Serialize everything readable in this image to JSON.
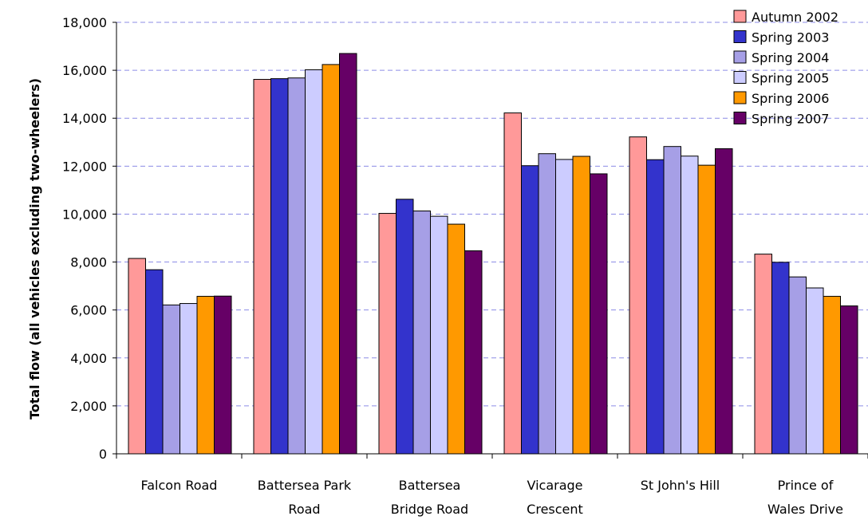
{
  "chart_data": {
    "type": "bar",
    "title": "",
    "xlabel": "",
    "ylabel": "Total flow (all vehicles excluding two-wheelers)",
    "ylim": [
      0,
      18000
    ],
    "yticks": [
      0,
      2000,
      4000,
      6000,
      8000,
      10000,
      12000,
      14000,
      16000,
      18000
    ],
    "ytick_labels": [
      "0",
      "2,000",
      "4,000",
      "6,000",
      "8,000",
      "10,000",
      "12,000",
      "14,000",
      "16,000",
      "18,000"
    ],
    "grid": "horizontal dashed",
    "legend_position": "top-right",
    "categories": [
      [
        "Falcon Road"
      ],
      [
        "Battersea Park",
        "Road"
      ],
      [
        "Battersea",
        "Bridge Road"
      ],
      [
        "Vicarage",
        "Crescent"
      ],
      [
        "St John's Hill"
      ],
      [
        "Prince of",
        "Wales Drive"
      ]
    ],
    "series": [
      {
        "name": "Autumn 2002",
        "color": "#ff9999",
        "values": [
          8150,
          15620,
          10030,
          14220,
          13220,
          8330
        ]
      },
      {
        "name": "Spring 2003",
        "color": "#3333cc",
        "values": [
          7680,
          15650,
          10620,
          12020,
          12270,
          7990
        ]
      },
      {
        "name": "Spring 2004",
        "color": "#a69fe6",
        "values": [
          6210,
          15680,
          10130,
          12520,
          12820,
          7380
        ]
      },
      {
        "name": "Spring 2005",
        "color": "#ccccff",
        "values": [
          6270,
          16020,
          9910,
          12280,
          12420,
          6920
        ]
      },
      {
        "name": "Spring 2006",
        "color": "#ff9900",
        "values": [
          6570,
          16240,
          9580,
          12410,
          12040,
          6570
        ]
      },
      {
        "name": "Spring 2007",
        "color": "#660066",
        "values": [
          6580,
          16700,
          8470,
          11680,
          12730,
          6170
        ]
      }
    ]
  }
}
